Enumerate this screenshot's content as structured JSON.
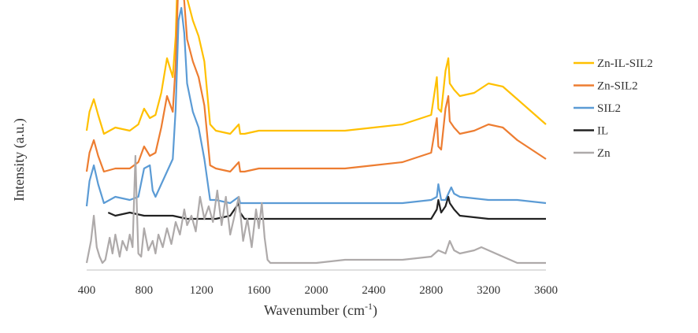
{
  "chart_data": {
    "type": "line",
    "xlabel": "Wavenumber (cm",
    "xlabel_sup": "-1",
    "xlabel_end": ")",
    "ylabel": "Intensity (a.u.)",
    "xlim": [
      400,
      3600
    ],
    "xticks": [
      "400",
      "800",
      "1200",
      "1600",
      "2000",
      "2400",
      "2800",
      "3200",
      "3600"
    ],
    "grid": false,
    "legend_position": "right",
    "series": [
      {
        "name": "Zn-IL-SIL2",
        "color": "#FFC000",
        "offset": 4,
        "x": [
          400,
          420,
          450,
          480,
          520,
          600,
          700,
          760,
          800,
          840,
          880,
          920,
          960,
          1000,
          1020,
          1040,
          1060,
          1080,
          1100,
          1140,
          1180,
          1220,
          1260,
          1300,
          1400,
          1460,
          1470,
          1500,
          1600,
          1800,
          2000,
          2200,
          2400,
          2600,
          2800,
          2840,
          2850,
          2870,
          2900,
          2920,
          2930,
          2960,
          3000,
          3100,
          3200,
          3300,
          3400,
          3500,
          3600
        ],
        "y": [
          0.3,
          0.9,
          1.3,
          0.8,
          0.2,
          0.4,
          0.3,
          0.5,
          1.0,
          0.7,
          0.8,
          1.5,
          2.6,
          2.0,
          3.3,
          6.2,
          6.6,
          5.8,
          4.5,
          3.8,
          3.3,
          2.5,
          0.5,
          0.3,
          0.2,
          0.5,
          0.2,
          0.2,
          0.3,
          0.3,
          0.3,
          0.3,
          0.4,
          0.5,
          0.8,
          2.0,
          1.0,
          0.9,
          2.2,
          2.6,
          1.8,
          1.6,
          1.4,
          1.5,
          1.8,
          1.7,
          1.3,
          0.9,
          0.5
        ]
      },
      {
        "name": "Zn-SIL2",
        "color": "#ED7D31",
        "offset": 2.8,
        "x": [
          400,
          420,
          450,
          480,
          520,
          600,
          700,
          760,
          800,
          840,
          880,
          920,
          960,
          1000,
          1020,
          1040,
          1060,
          1080,
          1100,
          1140,
          1180,
          1220,
          1260,
          1300,
          1400,
          1460,
          1470,
          1500,
          1600,
          1800,
          2000,
          2200,
          2400,
          2600,
          2800,
          2840,
          2850,
          2870,
          2900,
          2920,
          2930,
          2960,
          3000,
          3100,
          3200,
          3300,
          3400,
          3500,
          3600
        ],
        "y": [
          0.2,
          0.8,
          1.2,
          0.7,
          0.2,
          0.3,
          0.3,
          0.5,
          1.0,
          0.7,
          0.8,
          1.6,
          2.6,
          2.1,
          3.6,
          6.4,
          6.6,
          5.6,
          4.4,
          3.7,
          3.2,
          2.3,
          0.4,
          0.3,
          0.2,
          0.5,
          0.2,
          0.2,
          0.3,
          0.3,
          0.3,
          0.3,
          0.4,
          0.5,
          0.8,
          1.9,
          1.0,
          0.9,
          2.2,
          2.6,
          1.8,
          1.6,
          1.4,
          1.5,
          1.7,
          1.6,
          1.2,
          0.9,
          0.6
        ]
      },
      {
        "name": "SIL2",
        "color": "#5B9BD5",
        "offset": 1.8,
        "x": [
          400,
          420,
          450,
          480,
          520,
          600,
          700,
          760,
          800,
          840,
          860,
          880,
          920,
          960,
          1000,
          1020,
          1040,
          1060,
          1080,
          1100,
          1140,
          1180,
          1220,
          1260,
          1300,
          1400,
          1460,
          1470,
          1500,
          1600,
          1800,
          2000,
          2200,
          2400,
          2600,
          2800,
          2840,
          2850,
          2870,
          2900,
          2920,
          2940,
          2960,
          3000,
          3200,
          3400,
          3600
        ],
        "y": [
          0.1,
          0.9,
          1.4,
          0.8,
          0.2,
          0.4,
          0.3,
          0.4,
          1.3,
          1.4,
          0.6,
          0.4,
          0.8,
          1.2,
          1.6,
          3.2,
          6.0,
          6.4,
          5.6,
          4.0,
          3.1,
          2.6,
          1.6,
          0.3,
          0.3,
          0.2,
          0.4,
          0.2,
          0.2,
          0.2,
          0.2,
          0.2,
          0.2,
          0.2,
          0.2,
          0.3,
          0.4,
          0.8,
          0.3,
          0.3,
          0.5,
          0.7,
          0.5,
          0.4,
          0.3,
          0.3,
          0.2
        ]
      },
      {
        "name": "IL",
        "color": "#222222",
        "offset": 1.4,
        "x": [
          550,
          600,
          700,
          800,
          900,
          1000,
          1100,
          1200,
          1300,
          1400,
          1460,
          1470,
          1500,
          1600,
          1800,
          2000,
          2200,
          2400,
          2600,
          2800,
          2840,
          2850,
          2870,
          2900,
          2920,
          2930,
          2960,
          3000,
          3200,
          3400,
          3600
        ],
        "y": [
          0.3,
          0.2,
          0.3,
          0.2,
          0.2,
          0.2,
          0.1,
          0.1,
          0.1,
          0.2,
          0.6,
          0.3,
          0.1,
          0.1,
          0.1,
          0.1,
          0.1,
          0.1,
          0.1,
          0.1,
          0.4,
          0.7,
          0.3,
          0.5,
          0.8,
          0.6,
          0.4,
          0.2,
          0.1,
          0.1,
          0.1
        ]
      },
      {
        "name": "Zn",
        "color": "#AEAAAA",
        "offset": 0,
        "x": [
          400,
          430,
          450,
          470,
          490,
          510,
          530,
          560,
          580,
          600,
          630,
          650,
          680,
          700,
          720,
          740,
          750,
          760,
          780,
          800,
          830,
          860,
          880,
          900,
          930,
          960,
          990,
          1020,
          1050,
          1080,
          1100,
          1130,
          1160,
          1190,
          1220,
          1250,
          1280,
          1310,
          1340,
          1370,
          1400,
          1430,
          1460,
          1490,
          1520,
          1550,
          1580,
          1600,
          1620,
          1640,
          1660,
          1680,
          1800,
          2000,
          2200,
          2400,
          2600,
          2800,
          2850,
          2900,
          2930,
          2960,
          3000,
          3100,
          3150,
          3200,
          3300,
          3400,
          3600
        ],
        "y": [
          0.1,
          0.8,
          1.6,
          0.6,
          0.3,
          0.1,
          0.2,
          0.9,
          0.4,
          1.0,
          0.3,
          0.8,
          0.5,
          1.0,
          0.6,
          3.5,
          1.8,
          0.4,
          0.3,
          1.2,
          0.5,
          0.8,
          0.4,
          1.0,
          0.6,
          1.2,
          0.7,
          1.4,
          1.0,
          1.8,
          1.3,
          1.6,
          1.1,
          2.2,
          1.5,
          1.9,
          1.4,
          2.4,
          1.3,
          2.2,
          1.0,
          1.6,
          2.2,
          0.8,
          1.5,
          0.6,
          1.8,
          1.2,
          2.0,
          0.9,
          0.2,
          0.1,
          0.1,
          0.1,
          0.2,
          0.2,
          0.2,
          0.3,
          0.5,
          0.4,
          0.8,
          0.5,
          0.4,
          0.5,
          0.6,
          0.5,
          0.3,
          0.1,
          0.1
        ]
      }
    ]
  }
}
